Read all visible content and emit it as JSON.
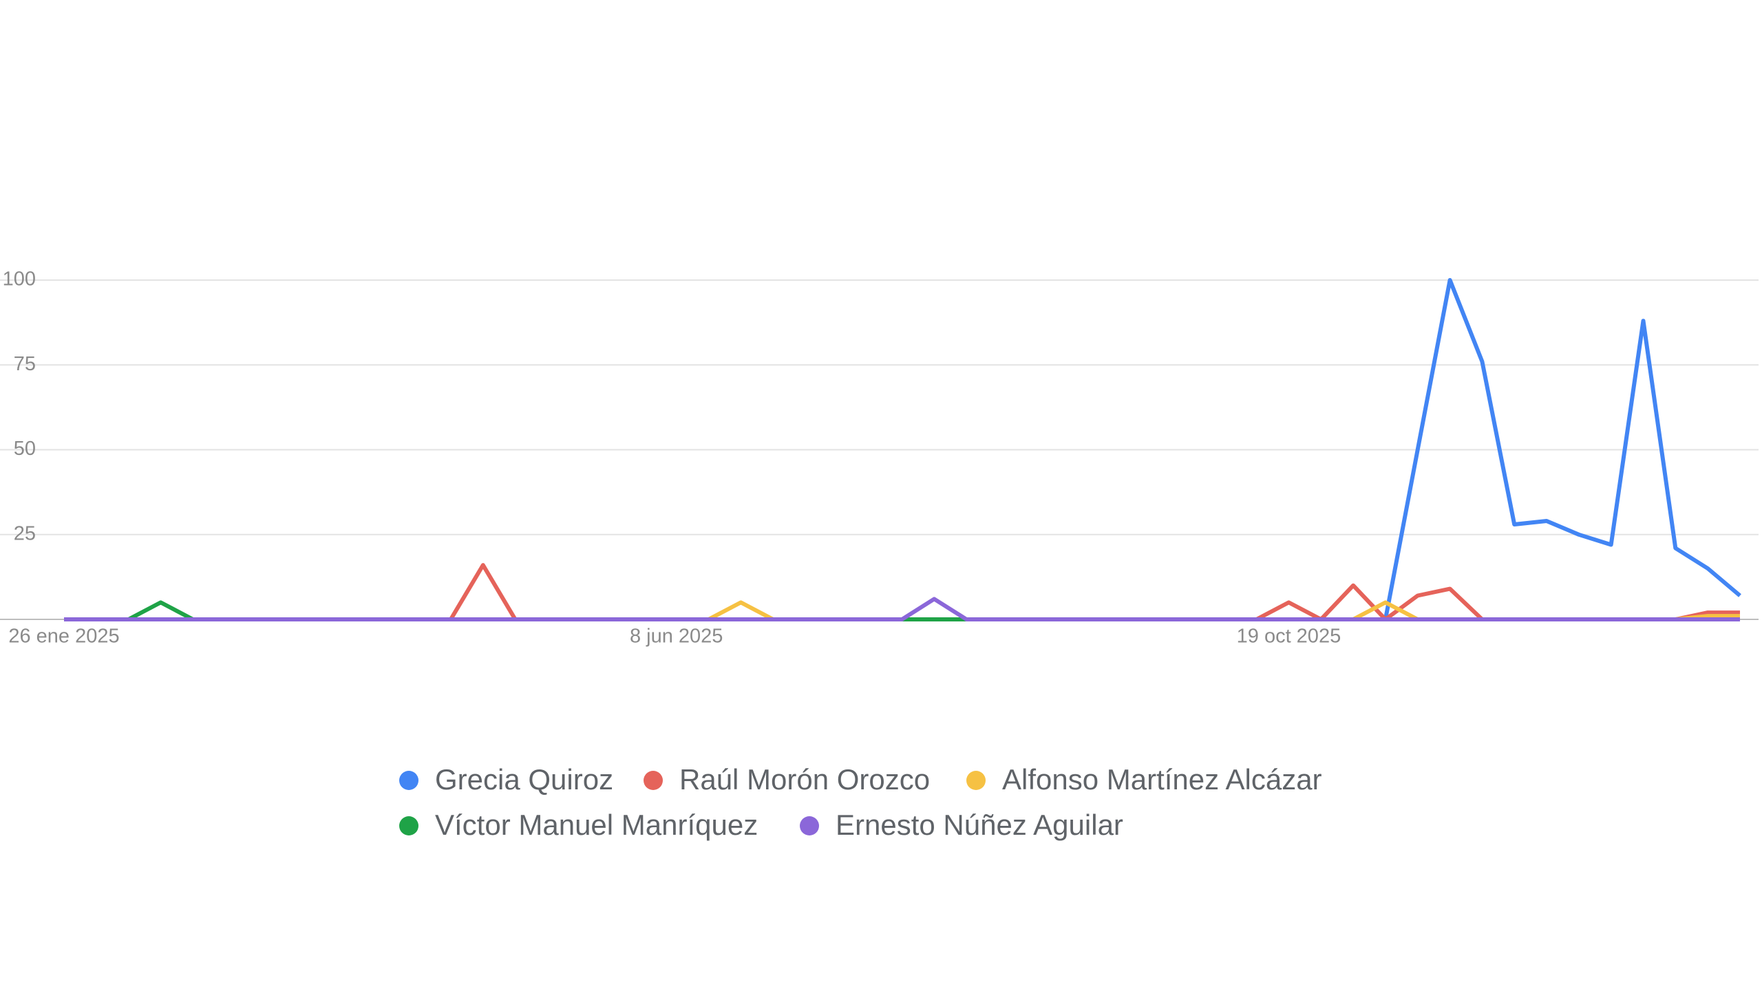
{
  "chart_data": {
    "type": "line",
    "categories": [
      "26 ene 2025",
      null,
      null,
      null,
      null,
      null,
      null,
      null,
      null,
      null,
      null,
      null,
      null,
      null,
      null,
      null,
      null,
      null,
      null,
      "8 jun 2025",
      null,
      null,
      null,
      null,
      null,
      null,
      null,
      null,
      null,
      null,
      null,
      null,
      null,
      null,
      null,
      null,
      null,
      null,
      "19 oct 2025",
      null,
      null,
      null,
      null,
      null,
      null,
      null,
      null,
      null,
      null,
      null,
      null,
      null,
      null
    ],
    "series": [
      {
        "name": "Grecia Quiroz",
        "color": "#4285f4",
        "values": [
          0,
          0,
          0,
          0,
          0,
          0,
          0,
          0,
          0,
          0,
          0,
          0,
          0,
          0,
          0,
          0,
          0,
          0,
          0,
          0,
          0,
          0,
          0,
          0,
          0,
          0,
          0,
          0,
          0,
          0,
          0,
          0,
          0,
          0,
          0,
          0,
          0,
          0,
          0,
          0,
          0,
          0,
          50,
          100,
          76,
          28,
          29,
          25,
          22,
          88,
          21,
          15,
          7
        ]
      },
      {
        "name": "Raúl Morón Orozco",
        "color": "#e5635a",
        "values": [
          0,
          0,
          0,
          0,
          0,
          0,
          0,
          0,
          0,
          0,
          0,
          0,
          0,
          16,
          0,
          0,
          0,
          0,
          0,
          0,
          0,
          0,
          0,
          0,
          0,
          0,
          0,
          0,
          0,
          0,
          0,
          0,
          0,
          0,
          0,
          0,
          0,
          0,
          5,
          0,
          10,
          0,
          7,
          9,
          0,
          0,
          0,
          0,
          0,
          0,
          0,
          2,
          2
        ]
      },
      {
        "name": "Alfonso Martínez Alcázar",
        "color": "#f6c143",
        "values": [
          0,
          0,
          0,
          0,
          0,
          0,
          0,
          0,
          0,
          0,
          0,
          0,
          0,
          0,
          0,
          0,
          0,
          0,
          0,
          0,
          0,
          5,
          0,
          0,
          0,
          0,
          0,
          0,
          0,
          0,
          0,
          0,
          0,
          0,
          0,
          0,
          0,
          0,
          0,
          0,
          0,
          5,
          0,
          0,
          0,
          0,
          0,
          0,
          0,
          0,
          0,
          1,
          1
        ]
      },
      {
        "name": "Víctor Manuel Manríquez",
        "color": "#1fa347",
        "values": [
          0,
          0,
          0,
          5,
          0,
          0,
          0,
          0,
          0,
          0,
          0,
          0,
          0,
          0,
          0,
          0,
          0,
          0,
          0,
          0,
          0,
          0,
          0,
          0,
          0,
          0,
          0,
          0,
          0,
          0,
          0,
          0,
          0,
          0,
          0,
          0,
          0,
          0,
          0,
          0,
          0,
          0,
          0,
          0,
          0,
          0,
          0,
          0,
          0,
          0,
          0,
          0,
          0
        ]
      },
      {
        "name": "Ernesto Núñez Aguilar",
        "color": "#8b67d9",
        "values": [
          0,
          0,
          0,
          0,
          0,
          0,
          0,
          0,
          0,
          0,
          0,
          0,
          0,
          0,
          0,
          0,
          0,
          0,
          0,
          0,
          0,
          0,
          0,
          0,
          0,
          0,
          0,
          6,
          0,
          0,
          0,
          0,
          0,
          0,
          0,
          0,
          0,
          0,
          0,
          0,
          0,
          0,
          0,
          0,
          0,
          0,
          0,
          0,
          0,
          0,
          0,
          0,
          0
        ]
      }
    ],
    "ylim": [
      0,
      100
    ],
    "yticks": [
      25,
      50,
      75,
      100
    ],
    "grid": true
  }
}
